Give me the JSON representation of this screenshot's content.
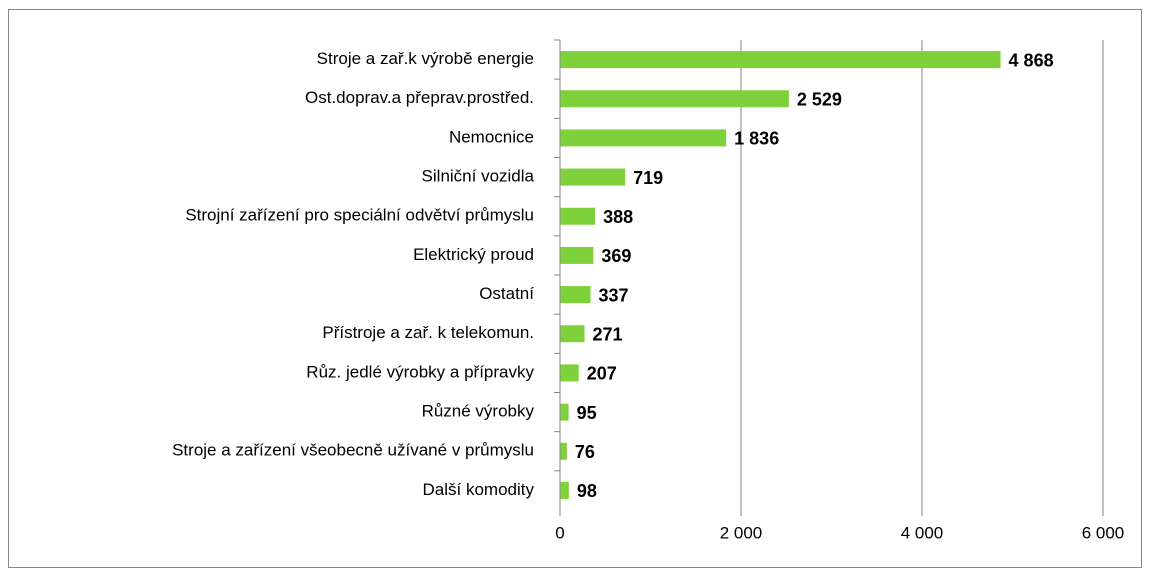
{
  "chart_data": {
    "type": "bar",
    "orientation": "horizontal",
    "categories": [
      "Stroje a zař.k výrobě energie",
      "Ost.doprav.a přeprav.prostřed.",
      "Nemocnice",
      "Silniční vozidla",
      "Strojní zařízení pro speciální odvětví průmyslu",
      "Elektrický proud",
      "Ostatní",
      "Přístroje a zař. k telekomun.",
      "Růz. jedlé výrobky a přípravky",
      "Různé výrobky",
      "Stroje a zařízení všeobecně užívané v průmyslu",
      "Další komodity"
    ],
    "values": [
      4868,
      2529,
      1836,
      719,
      388,
      369,
      337,
      271,
      207,
      95,
      76,
      98
    ],
    "value_labels": [
      "4 868",
      "2 529",
      "1 836",
      "719",
      "388",
      "369",
      "337",
      "271",
      "207",
      "95",
      "76",
      "98"
    ],
    "color": "#7fd13b",
    "xlim": [
      0,
      6000
    ],
    "xticks": [
      0,
      {
        "value": 2000,
        "label": "2 000"
      },
      {
        "value": 4000,
        "label": "4 000"
      },
      {
        "value": 6000,
        "label": "6 000"
      }
    ],
    "grid": true
  }
}
